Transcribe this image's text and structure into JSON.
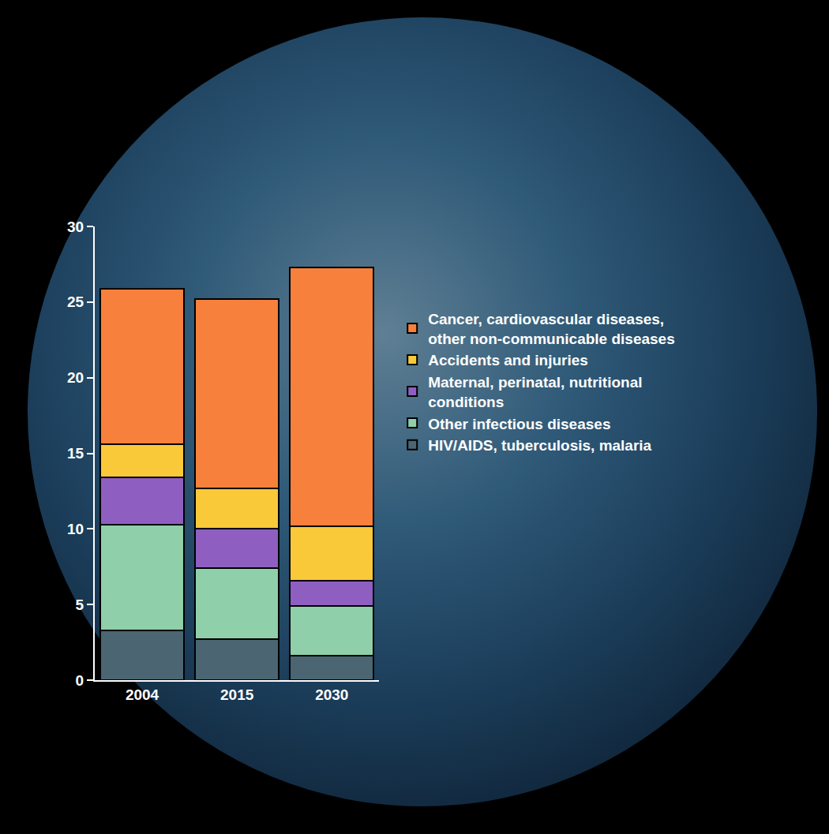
{
  "chart_data": {
    "type": "bar",
    "stacked": true,
    "grid": false,
    "legend": "right",
    "categories": [
      "2004",
      "2015",
      "2030"
    ],
    "ylim": [
      0,
      30
    ],
    "yticks": [
      0,
      5,
      10,
      15,
      20,
      25,
      30
    ],
    "series": [
      {
        "name": "HIV/AIDS, tuberculosis, malaria",
        "color": "#4b6572",
        "values": [
          3.3,
          2.7,
          1.6
        ]
      },
      {
        "name": "Other infectious diseases",
        "color": "#8fcfaa",
        "values": [
          7.0,
          4.7,
          3.3
        ]
      },
      {
        "name": "Maternal, perinatal, nutritional conditions",
        "color": "#8e5fc0",
        "values": [
          3.1,
          2.6,
          1.7
        ]
      },
      {
        "name": "Accidents and injuries",
        "color": "#f9c93a",
        "values": [
          2.2,
          2.7,
          3.6
        ]
      },
      {
        "name": "Cancer, cardiovascular diseases, other non-communicable diseases",
        "color": "#f7803c",
        "values": [
          10.3,
          12.5,
          17.1
        ]
      }
    ]
  }
}
